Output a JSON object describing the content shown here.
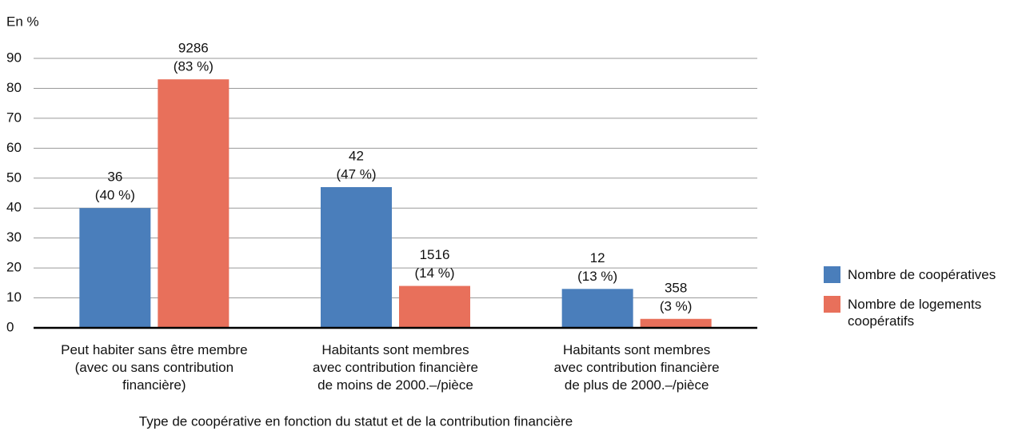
{
  "chart_data": {
    "type": "bar",
    "y_axis_label": "En %",
    "x_axis_label": "Type de coopérative en fonction du statut et de la contribution financière",
    "categories": [
      "Peut habiter sans être membre\n(avec ou sans contribution\nfinancière)",
      "Habitants sont membres\navec contribution financière\nde moins de 2000.–/pièce",
      "Habitants sont membres\navec contribution financière\nde plus de 2000.–/pièce"
    ],
    "series": [
      {
        "name": "Nombre de coopératives",
        "color": "#4a7ebb",
        "values": [
          40,
          47,
          13
        ],
        "value_labels": [
          "(40 %)",
          "(47 %)",
          "(13 %)"
        ],
        "counts": [
          36,
          42,
          12
        ]
      },
      {
        "name": "Nombre de logements coopératifs",
        "color": "#e8705b",
        "values": [
          83,
          14,
          3
        ],
        "value_labels": [
          "(83 %)",
          "(14 %)",
          "(3 %)"
        ],
        "counts": [
          9286,
          1516,
          358
        ]
      }
    ],
    "ylim": [
      0,
      90
    ],
    "yticks": [
      0,
      10,
      20,
      30,
      40,
      50,
      60,
      70,
      80,
      90
    ],
    "grid": true,
    "legend": "right"
  }
}
